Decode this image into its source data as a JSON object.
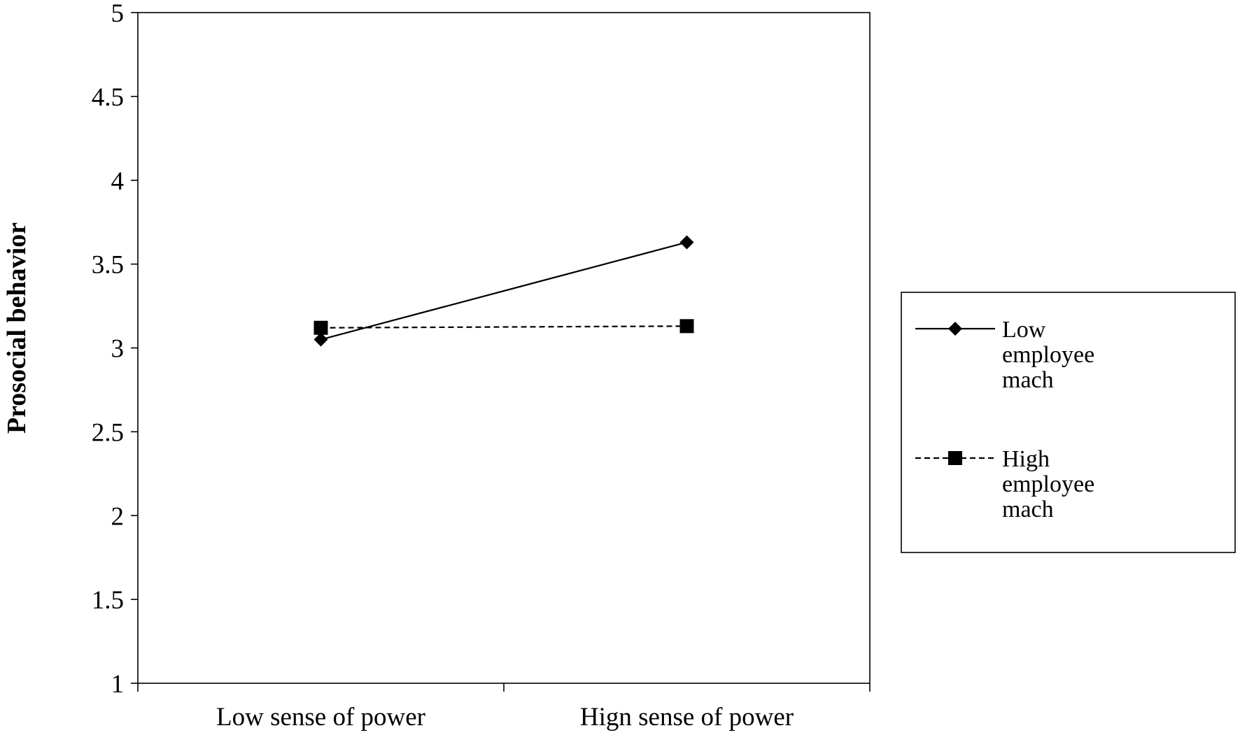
{
  "chart_data": {
    "type": "line",
    "title": "",
    "xlabel": "",
    "ylabel": "Prosocial behavior",
    "categories": [
      "Low sense of power",
      "Hign sense of power"
    ],
    "ylim": [
      1,
      5
    ],
    "yticks": [
      "1",
      "1.5",
      "2",
      "2.5",
      "3",
      "3.5",
      "4",
      "4.5",
      "5"
    ],
    "grid": false,
    "legend_position": "right",
    "series": [
      {
        "name": "Low employee mach",
        "name_lines": [
          "Low",
          "employee",
          "mach"
        ],
        "values": [
          3.05,
          3.63
        ],
        "line_style": "solid",
        "marker": "diamond",
        "color": "#000000"
      },
      {
        "name": "High employee mach",
        "name_lines": [
          "High",
          "employee",
          "mach"
        ],
        "values": [
          3.12,
          3.13
        ],
        "line_style": "dashed",
        "marker": "square",
        "color": "#000000"
      }
    ]
  }
}
